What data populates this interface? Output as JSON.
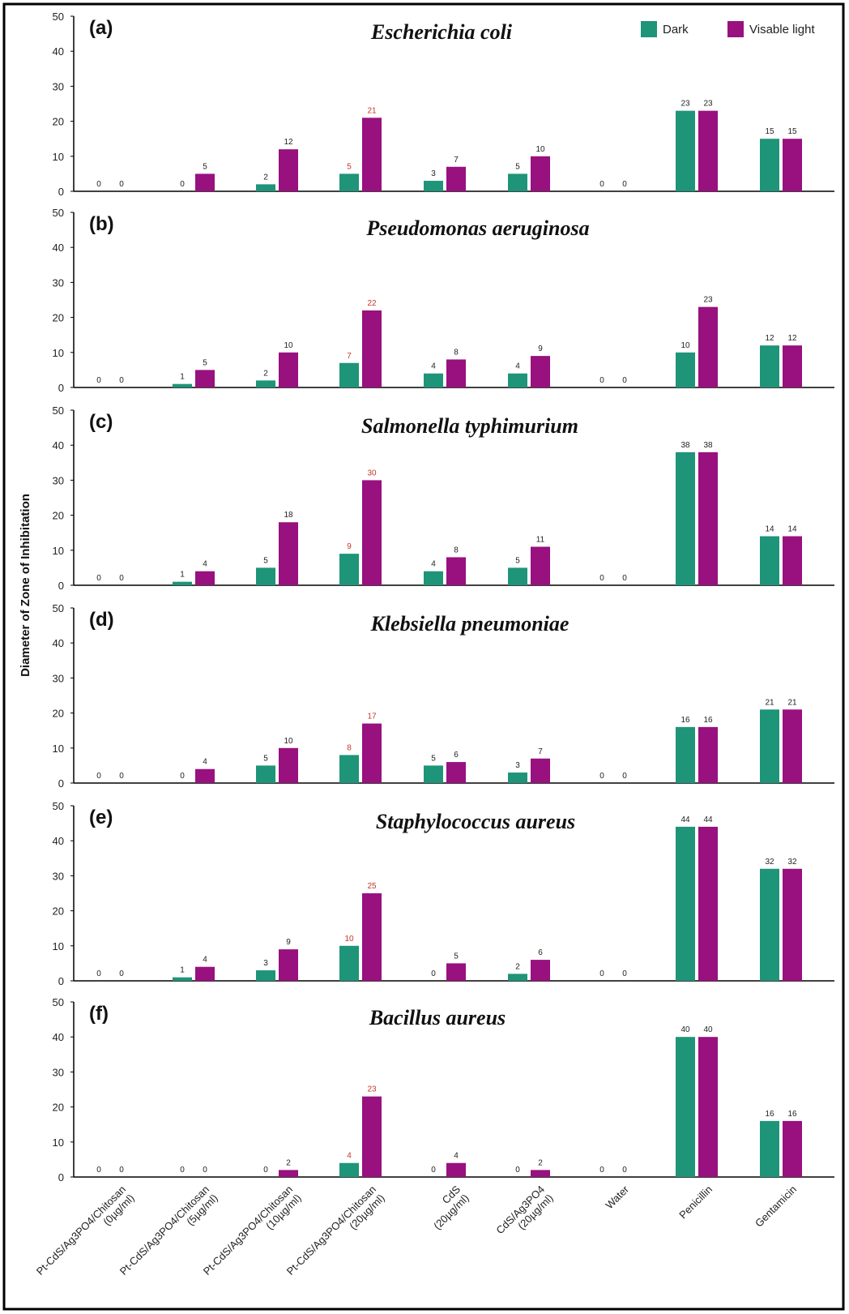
{
  "colors": {
    "dark": "#1e9479",
    "light": "#99107f",
    "highlight_label": "#c0392b"
  },
  "legend": {
    "dark": "Dark",
    "light": "Visable light"
  },
  "ylabel": "Diameter of Zone of Inhibitation",
  "categories": [
    [
      "Pt-CdS/Ag3PO4/Chitosan",
      "(0µg/ml)"
    ],
    [
      "Pt-CdS/Ag3PO4/Chitosan",
      "(5µg/ml)"
    ],
    [
      "Pt-CdS/Ag3PO4/Chitosan",
      "(10µg/ml)"
    ],
    [
      "Pt-CdS/Ag3PO4/Chitosan",
      "(20µg/ml)"
    ],
    [
      "CdS",
      "(20µg/ml)"
    ],
    [
      "CdS/Ag3PO4",
      "(20µg/ml)"
    ],
    [
      "Water"
    ],
    [
      "Penicillin"
    ],
    [
      "Gentamicin"
    ]
  ],
  "yticks": [
    "0",
    "10",
    "20",
    "30",
    "40",
    "50"
  ],
  "chart_data": [
    {
      "type": "bar",
      "letter": "(a)",
      "title": "Escherichia coli",
      "ylim": [
        0,
        50
      ],
      "series": [
        {
          "name": "Dark",
          "values": [
            0,
            0,
            2,
            5,
            3,
            5,
            0,
            23,
            15
          ]
        },
        {
          "name": "Visable light",
          "values": [
            0,
            5,
            12,
            21,
            7,
            10,
            0,
            23,
            15
          ]
        }
      ]
    },
    {
      "type": "bar",
      "letter": "(b)",
      "title": "Pseudomonas aeruginosa",
      "ylim": [
        0,
        50
      ],
      "series": [
        {
          "name": "Dark",
          "values": [
            0,
            1,
            2,
            7,
            4,
            4,
            0,
            10,
            12
          ]
        },
        {
          "name": "Visable light",
          "values": [
            0,
            5,
            10,
            22,
            8,
            9,
            0,
            23,
            12
          ]
        }
      ]
    },
    {
      "type": "bar",
      "letter": "(c)",
      "title": "Salmonella typhimurium",
      "ylim": [
        0,
        50
      ],
      "series": [
        {
          "name": "Dark",
          "values": [
            0,
            1,
            5,
            9,
            4,
            5,
            0,
            38,
            14
          ]
        },
        {
          "name": "Visable light",
          "values": [
            0,
            4,
            18,
            30,
            8,
            11,
            0,
            38,
            14
          ]
        }
      ]
    },
    {
      "type": "bar",
      "letter": "(d)",
      "title": "Klebsiella pneumoniae",
      "ylim": [
        0,
        50
      ],
      "series": [
        {
          "name": "Dark",
          "values": [
            0,
            0,
            5,
            8,
            5,
            3,
            0,
            16,
            21
          ]
        },
        {
          "name": "Visable light",
          "values": [
            0,
            4,
            10,
            17,
            6,
            7,
            0,
            16,
            21
          ]
        }
      ]
    },
    {
      "type": "bar",
      "letter": "(e)",
      "title": "Staphylococcus aureus",
      "ylim": [
        0,
        50
      ],
      "series": [
        {
          "name": "Dark",
          "values": [
            0,
            1,
            3,
            10,
            0,
            2,
            0,
            44,
            32
          ]
        },
        {
          "name": "Visable light",
          "values": [
            0,
            4,
            9,
            25,
            5,
            6,
            0,
            44,
            32
          ]
        }
      ]
    },
    {
      "type": "bar",
      "letter": "(f)",
      "title": "Bacillus aureus",
      "ylim": [
        0,
        50
      ],
      "series": [
        {
          "name": "Dark",
          "values": [
            0,
            0,
            0,
            4,
            0,
            0,
            0,
            40,
            16
          ]
        },
        {
          "name": "Visable light",
          "values": [
            0,
            0,
            2,
            23,
            4,
            2,
            0,
            40,
            16
          ]
        }
      ]
    }
  ]
}
